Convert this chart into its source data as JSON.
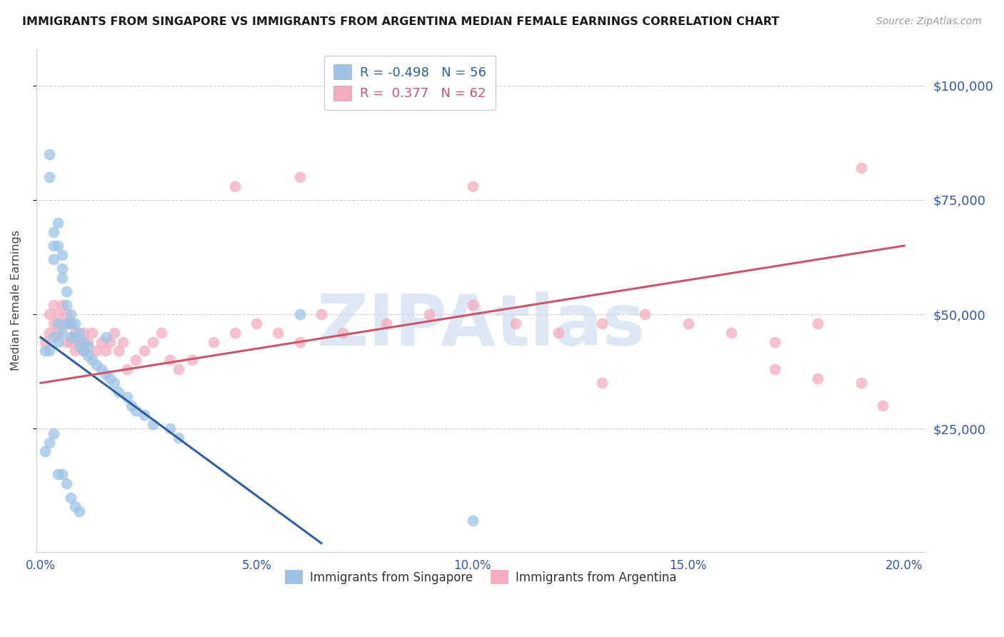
{
  "title": "IMMIGRANTS FROM SINGAPORE VS IMMIGRANTS FROM ARGENTINA MEDIAN FEMALE EARNINGS CORRELATION CHART",
  "source": "Source: ZipAtlas.com",
  "ylabel": "Median Female Earnings",
  "xlabel_ticks": [
    "0.0%",
    "5.0%",
    "10.0%",
    "15.0%",
    "20.0%"
  ],
  "xlabel_vals": [
    0.0,
    0.05,
    0.1,
    0.15,
    0.2
  ],
  "ytick_labels": [
    "$25,000",
    "$50,000",
    "$75,000",
    "$100,000"
  ],
  "ytick_vals": [
    25000,
    50000,
    75000,
    100000
  ],
  "ylim": [
    -2000,
    108000
  ],
  "xlim": [
    -0.001,
    0.205
  ],
  "singapore_color": "#9DC3E6",
  "argentina_color": "#F4ACBE",
  "singapore_line_color": "#2E5FA3",
  "argentina_line_color": "#C9566A",
  "watermark_text": "ZIPAtlas",
  "watermark_color": "#C8D8EE",
  "legend_R_singapore": "R = -0.498",
  "legend_N_singapore": "N = 56",
  "legend_R_argentina": "R =  0.377",
  "legend_N_argentina": "N = 62",
  "legend_color_sg": "#2E5FA3",
  "legend_color_ar": "#C9566A",
  "background_color": "#ffffff",
  "grid_color": "#cccccc",
  "axis_label_color": "#3355BB",
  "singapore_scatter_x": [
    0.001,
    0.002,
    0.002,
    0.002,
    0.003,
    0.003,
    0.003,
    0.003,
    0.004,
    0.004,
    0.004,
    0.004,
    0.005,
    0.005,
    0.005,
    0.005,
    0.006,
    0.006,
    0.006,
    0.007,
    0.007,
    0.007,
    0.008,
    0.008,
    0.009,
    0.009,
    0.01,
    0.01,
    0.011,
    0.011,
    0.012,
    0.013,
    0.014,
    0.015,
    0.015,
    0.016,
    0.017,
    0.018,
    0.02,
    0.021,
    0.022,
    0.024,
    0.026,
    0.03,
    0.032,
    0.001,
    0.002,
    0.003,
    0.004,
    0.005,
    0.006,
    0.007,
    0.008,
    0.009,
    0.06,
    0.1
  ],
  "singapore_scatter_y": [
    42000,
    85000,
    80000,
    42000,
    68000,
    65000,
    62000,
    45000,
    70000,
    65000,
    48000,
    44000,
    63000,
    60000,
    58000,
    46000,
    55000,
    52000,
    48000,
    50000,
    48000,
    45000,
    48000,
    45000,
    46000,
    43000,
    44000,
    42000,
    43000,
    41000,
    40000,
    39000,
    38000,
    45000,
    37000,
    36000,
    35000,
    33000,
    32000,
    30000,
    29000,
    28000,
    26000,
    25000,
    23000,
    20000,
    22000,
    24000,
    15000,
    15000,
    13000,
    10000,
    8000,
    7000,
    50000,
    5000
  ],
  "argentina_scatter_x": [
    0.001,
    0.002,
    0.002,
    0.003,
    0.003,
    0.004,
    0.004,
    0.005,
    0.005,
    0.006,
    0.006,
    0.007,
    0.007,
    0.008,
    0.008,
    0.009,
    0.01,
    0.01,
    0.011,
    0.012,
    0.013,
    0.014,
    0.015,
    0.016,
    0.017,
    0.018,
    0.019,
    0.02,
    0.022,
    0.024,
    0.026,
    0.028,
    0.03,
    0.032,
    0.035,
    0.04,
    0.045,
    0.05,
    0.055,
    0.06,
    0.065,
    0.07,
    0.08,
    0.09,
    0.1,
    0.11,
    0.12,
    0.13,
    0.14,
    0.15,
    0.16,
    0.17,
    0.18,
    0.045,
    0.06,
    0.1,
    0.13,
    0.17,
    0.18,
    0.19,
    0.19,
    0.195
  ],
  "argentina_scatter_y": [
    44000,
    50000,
    46000,
    52000,
    48000,
    50000,
    46000,
    52000,
    48000,
    50000,
    44000,
    48000,
    44000,
    46000,
    42000,
    44000,
    46000,
    42000,
    44000,
    46000,
    42000,
    44000,
    42000,
    44000,
    46000,
    42000,
    44000,
    38000,
    40000,
    42000,
    44000,
    46000,
    40000,
    38000,
    40000,
    44000,
    46000,
    48000,
    46000,
    44000,
    50000,
    46000,
    48000,
    50000,
    52000,
    48000,
    46000,
    48000,
    50000,
    48000,
    46000,
    44000,
    48000,
    78000,
    80000,
    78000,
    35000,
    38000,
    36000,
    35000,
    82000,
    30000
  ],
  "singapore_trendline_x": [
    0.0,
    0.065
  ],
  "singapore_trendline_y": [
    45000,
    0
  ],
  "argentina_trendline_x": [
    0.0,
    0.2
  ],
  "argentina_trendline_y": [
    35000,
    65000
  ]
}
